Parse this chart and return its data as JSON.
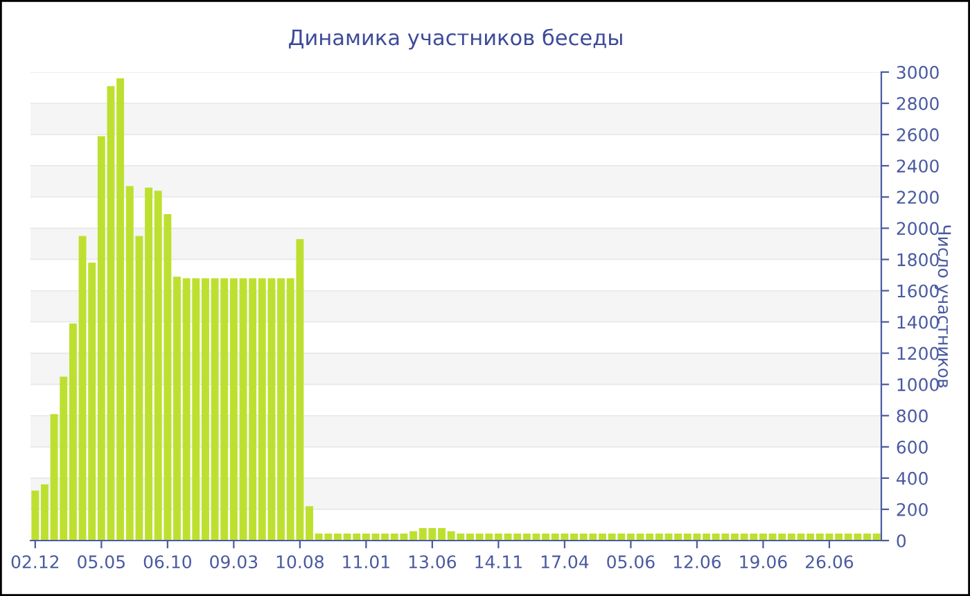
{
  "chart_data": {
    "type": "bar",
    "title": "Динамика участников беседы",
    "ylabel": "Число участников",
    "categories": [
      "02.12",
      null,
      null,
      null,
      null,
      null,
      null,
      "05.05",
      null,
      null,
      null,
      null,
      null,
      null,
      "06.10",
      null,
      null,
      null,
      null,
      null,
      null,
      "09.03",
      null,
      null,
      null,
      null,
      null,
      null,
      "10.08",
      null,
      null,
      null,
      null,
      null,
      null,
      "11.01",
      null,
      null,
      null,
      null,
      null,
      null,
      "13.06",
      null,
      null,
      null,
      null,
      null,
      null,
      "14.11",
      null,
      null,
      null,
      null,
      null,
      null,
      "17.04",
      null,
      null,
      null,
      null,
      null,
      null,
      "05.06",
      null,
      null,
      null,
      null,
      null,
      null,
      "12.06",
      null,
      null,
      null,
      null,
      null,
      null,
      "19.06",
      null,
      null,
      null,
      null,
      null,
      null,
      "26.06",
      null,
      null,
      null,
      null,
      null
    ],
    "values": [
      320,
      360,
      810,
      1050,
      1390,
      1950,
      1780,
      2590,
      2910,
      2960,
      2270,
      1950,
      2260,
      2240,
      2090,
      1690,
      1680,
      1680,
      1680,
      1680,
      1680,
      1680,
      1680,
      1680,
      1680,
      1680,
      1680,
      1680,
      1930,
      220,
      45,
      45,
      45,
      45,
      45,
      45,
      45,
      45,
      45,
      45,
      60,
      80,
      80,
      80,
      60,
      45,
      45,
      45,
      45,
      45,
      45,
      45,
      45,
      45,
      45,
      45,
      45,
      45,
      45,
      45,
      45,
      45,
      45,
      45,
      45,
      45,
      45,
      45,
      45,
      45,
      45,
      45,
      45,
      45,
      45,
      45,
      45,
      45,
      45,
      45,
      45,
      45,
      45,
      45,
      45,
      45,
      45,
      45,
      45,
      45
    ],
    "color": "#bde030",
    "ylim": [
      0,
      3000
    ],
    "yticks": [
      0,
      200,
      400,
      600,
      800,
      1000,
      1200,
      1400,
      1600,
      1800,
      2000,
      2200,
      2400,
      2600,
      2800,
      3000
    ],
    "grid": "y"
  }
}
